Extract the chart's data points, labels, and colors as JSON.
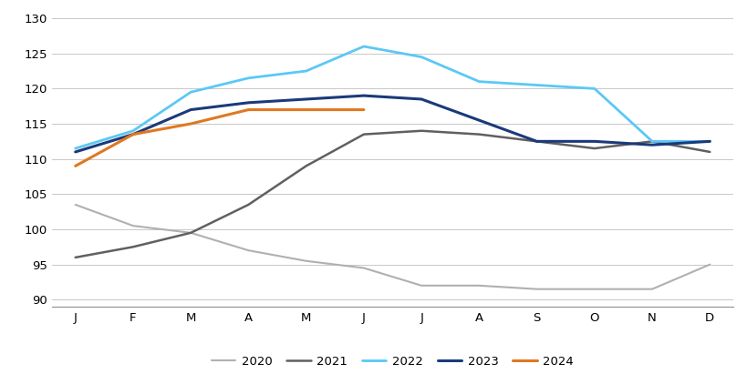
{
  "months": [
    "J",
    "F",
    "M",
    "A",
    "M",
    "J",
    "J",
    "A",
    "S",
    "O",
    "N",
    "D"
  ],
  "series": {
    "2020": [
      103.5,
      100.5,
      99.5,
      97.0,
      95.5,
      94.5,
      92.0,
      92.0,
      91.5,
      91.5,
      91.5,
      95.0
    ],
    "2021": [
      96.0,
      97.5,
      99.5,
      103.5,
      109.0,
      113.5,
      114.0,
      113.5,
      112.5,
      111.5,
      112.5,
      111.0
    ],
    "2022": [
      111.5,
      114.0,
      119.5,
      121.5,
      122.5,
      126.0,
      124.5,
      121.0,
      120.5,
      120.0,
      112.5,
      112.5
    ],
    "2023": [
      111.0,
      113.5,
      117.0,
      118.0,
      118.5,
      119.0,
      118.5,
      115.5,
      112.5,
      112.5,
      112.0,
      112.5
    ],
    "2024": [
      109.0,
      113.5,
      115.0,
      117.0,
      117.0,
      117.0,
      null,
      null,
      null,
      null,
      null,
      null
    ]
  },
  "colors": {
    "2020": "#b0b0b0",
    "2021": "#606060",
    "2022": "#5bc8f5",
    "2023": "#1a3a7a",
    "2024": "#e07820"
  },
  "linewidths": {
    "2020": 1.5,
    "2021": 1.8,
    "2022": 2.0,
    "2023": 2.2,
    "2024": 2.2
  },
  "ylim": [
    89,
    131
  ],
  "yticks": [
    90,
    95,
    100,
    105,
    110,
    115,
    120,
    125,
    130
  ],
  "background_color": "#ffffff",
  "grid_color": "#c8c8c8",
  "legend_order": [
    "2020",
    "2021",
    "2022",
    "2023",
    "2024"
  ]
}
